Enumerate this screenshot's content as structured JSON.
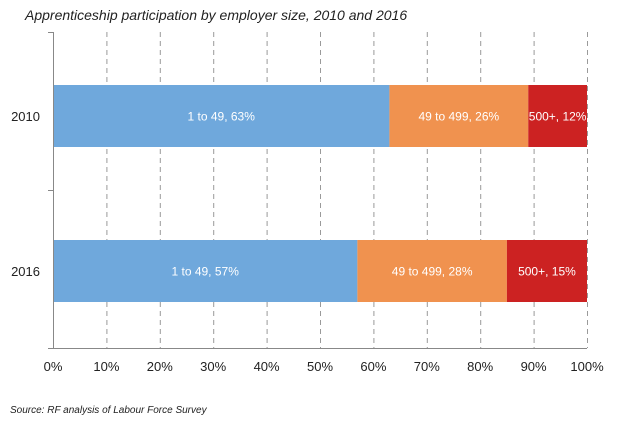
{
  "chart_data": {
    "type": "bar",
    "orientation": "horizontal",
    "stacked": true,
    "title": "Apprenticeship participation by employer size, 2010 and 2016",
    "categories": [
      "2010",
      "2016"
    ],
    "series": [
      {
        "label": "1 to 49",
        "color": "#6fa8dc",
        "values": [
          63,
          57
        ]
      },
      {
        "label": "49 to 499",
        "color": "#f0924f",
        "values": [
          26,
          28
        ]
      },
      {
        "label": "500+",
        "color": "#cc2222",
        "values": [
          12,
          15
        ]
      }
    ],
    "data_labels": [
      [
        "1 to 49, 63%",
        "49 to 499, 26%",
        "500+, 12%"
      ],
      [
        "1 to 49, 57%",
        "49 to 499, 28%",
        "500+, 15%"
      ]
    ],
    "xlim": [
      0,
      100
    ],
    "x_ticks": [
      "0%",
      "10%",
      "20%",
      "30%",
      "40%",
      "50%",
      "60%",
      "70%",
      "80%",
      "90%",
      "100%"
    ],
    "grid": true,
    "legend": "none"
  },
  "source": "Source: RF analysis of Labour Force Survey"
}
